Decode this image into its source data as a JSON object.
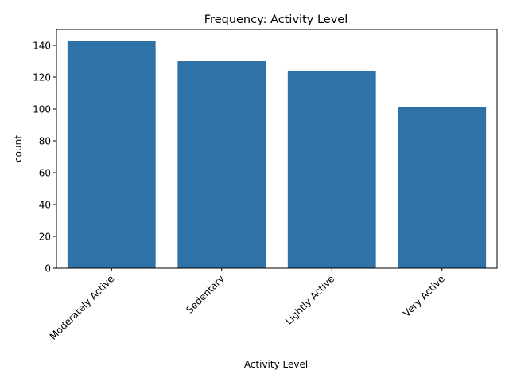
{
  "chart_data": {
    "type": "bar",
    "title": "Frequency: Activity Level",
    "xlabel": "Activity Level",
    "ylabel": "count",
    "categories": [
      "Moderately Active",
      "Sedentary",
      "Lightly Active",
      "Very Active"
    ],
    "values": [
      143,
      130,
      124,
      101
    ],
    "ylim": [
      0,
      150
    ],
    "yticks": [
      0,
      20,
      40,
      60,
      80,
      100,
      120,
      140
    ],
    "grid": false,
    "bar_color": "#2f72a7"
  }
}
